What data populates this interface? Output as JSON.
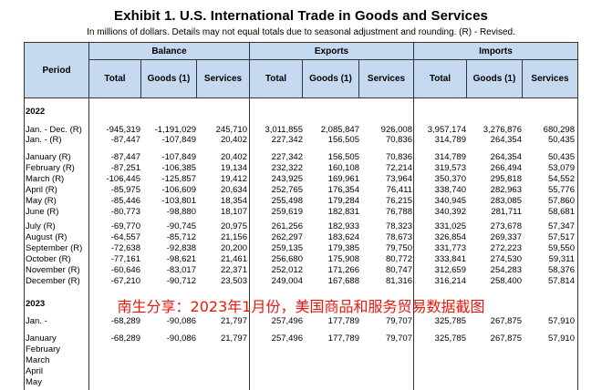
{
  "title": "Exhibit 1. U.S. International Trade in Goods and Services",
  "subtitle": "In millions of dollars. Details may not equal totals due to seasonal adjustment and rounding. (R) - Revised.",
  "header": {
    "period": "Period",
    "groups": [
      "Balance",
      "Exports",
      "Imports"
    ],
    "cols": [
      "Total",
      "Goods (1)",
      "Services"
    ]
  },
  "sections": [
    {
      "label": "2022",
      "rows": [
        {
          "period": "Jan. - Dec. (R)",
          "values": [
            "-945,319",
            "-1,191,029",
            "245,710",
            "3,011,855",
            "2,085,847",
            "926,008",
            "3,957,174",
            "3,276,876",
            "680,298"
          ]
        },
        {
          "period": "Jan. - (R)",
          "values": [
            "-87,447",
            "-107,849",
            "20,402",
            "227,342",
            "156,505",
            "70,836",
            "314,789",
            "264,354",
            "50,435"
          ]
        },
        {
          "period": "January (R)",
          "values": [
            "-87,447",
            "-107,849",
            "20,402",
            "227,342",
            "156,505",
            "70,836",
            "314,789",
            "264,354",
            "50,435"
          ]
        },
        {
          "period": "February (R)",
          "values": [
            "-87,251",
            "-106,385",
            "19,134",
            "232,322",
            "160,108",
            "72,214",
            "319,573",
            "266,494",
            "53,079"
          ]
        },
        {
          "period": "March (R)",
          "values": [
            "-106,445",
            "-125,857",
            "19,412",
            "243,925",
            "169,961",
            "73,964",
            "350,370",
            "295,818",
            "54,552"
          ]
        },
        {
          "period": "April (R)",
          "values": [
            "-85,975",
            "-106,609",
            "20,634",
            "252,765",
            "176,354",
            "76,411",
            "338,740",
            "282,963",
            "55,776"
          ]
        },
        {
          "period": "May (R)",
          "values": [
            "-85,446",
            "-103,801",
            "18,354",
            "255,498",
            "179,284",
            "76,215",
            "340,945",
            "283,085",
            "57,860"
          ]
        },
        {
          "period": "June (R)",
          "values": [
            "-80,773",
            "-98,880",
            "18,107",
            "259,619",
            "182,831",
            "76,788",
            "340,392",
            "281,711",
            "58,681"
          ]
        },
        {
          "period": "July (R)",
          "values": [
            "-69,770",
            "-90,745",
            "20,975",
            "261,256",
            "182,933",
            "78,323",
            "331,025",
            "273,678",
            "57,347"
          ]
        },
        {
          "period": "August (R)",
          "values": [
            "-64,557",
            "-85,712",
            "21,156",
            "262,297",
            "183,624",
            "78,673",
            "326,854",
            "269,337",
            "57,517"
          ]
        },
        {
          "period": "September (R)",
          "values": [
            "-72,638",
            "-92,838",
            "20,200",
            "259,135",
            "179,385",
            "79,750",
            "331,773",
            "272,223",
            "59,550"
          ]
        },
        {
          "period": "October (R)",
          "values": [
            "-77,161",
            "-98,621",
            "21,461",
            "256,680",
            "175,908",
            "80,772",
            "333,841",
            "274,530",
            "59,311"
          ]
        },
        {
          "period": "November (R)",
          "values": [
            "-60,646",
            "-83,017",
            "22,371",
            "252,012",
            "171,266",
            "80,747",
            "312,659",
            "254,283",
            "58,376"
          ]
        },
        {
          "period": "December (R)",
          "values": [
            "-67,210",
            "-90,712",
            "23,503",
            "249,004",
            "167,688",
            "81,316",
            "316,214",
            "258,400",
            "57,814"
          ]
        }
      ]
    },
    {
      "label": "2023",
      "rows": [
        {
          "period": "Jan. -",
          "values": [
            "-68,289",
            "-90,086",
            "21,797",
            "257,496",
            "177,789",
            "79,707",
            "325,785",
            "267,875",
            "57,910"
          ]
        },
        {
          "period": "January",
          "values": [
            "-68,289",
            "-90,086",
            "21,797",
            "257,496",
            "177,789",
            "79,707",
            "325,785",
            "267,875",
            "57,910"
          ]
        },
        {
          "period": "February",
          "values": [
            "",
            "",
            "",
            "",
            "",
            "",
            "",
            "",
            ""
          ]
        },
        {
          "period": "March",
          "values": [
            "",
            "",
            "",
            "",
            "",
            "",
            "",
            "",
            ""
          ]
        },
        {
          "period": "April",
          "values": [
            "",
            "",
            "",
            "",
            "",
            "",
            "",
            "",
            ""
          ]
        },
        {
          "period": "May",
          "values": [
            "",
            "",
            "",
            "",
            "",
            "",
            "",
            "",
            ""
          ]
        }
      ]
    }
  ],
  "overlay_text": "南生分享：2023年1月份，美国商品和服务贸易数据截图",
  "colors": {
    "header_bg": "#c5d9f1",
    "overlay": "#e8170c"
  }
}
